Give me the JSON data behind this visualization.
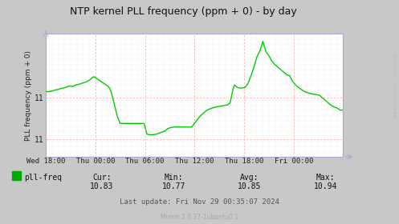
{
  "title": "NTP kernel PLL frequency (ppm + 0) - by day",
  "ylabel": "PLL frequency (ppm + 0)",
  "x_labels": [
    "Wed 18:00",
    "Thu 00:00",
    "Thu 06:00",
    "Thu 12:00",
    "Thu 18:00",
    "Fri 00:00"
  ],
  "ylim": [
    10.735,
    10.975
  ],
  "y_ticks": [
    10.77,
    10.85
  ],
  "line_color": "#00cc00",
  "fig_bg": "#c8c8c8",
  "plot_bg": "#ffffff",
  "legend_label": "pll-freq",
  "legend_color": "#00aa00",
  "stats_cur": "10.83",
  "stats_min": "10.77",
  "stats_avg": "10.85",
  "stats_max": "10.94",
  "last_update": "Last update: Fri Nov 29 00:35:07 2024",
  "munin_version": "Munin 2.0.37-1ubuntu0.1",
  "rrdtool_label": "RRDTOOL / TOBI OETIKER",
  "data_x": [
    0.0,
    0.01,
    0.02,
    0.03,
    0.04,
    0.05,
    0.06,
    0.07,
    0.08,
    0.09,
    0.1,
    0.11,
    0.12,
    0.13,
    0.14,
    0.15,
    0.155,
    0.16,
    0.165,
    0.17,
    0.175,
    0.18,
    0.185,
    0.19,
    0.195,
    0.2,
    0.205,
    0.21,
    0.215,
    0.22,
    0.225,
    0.23,
    0.24,
    0.25,
    0.26,
    0.27,
    0.28,
    0.29,
    0.3,
    0.31,
    0.32,
    0.33,
    0.34,
    0.35,
    0.36,
    0.37,
    0.38,
    0.39,
    0.4,
    0.41,
    0.42,
    0.43,
    0.44,
    0.45,
    0.46,
    0.47,
    0.48,
    0.49,
    0.5,
    0.51,
    0.52,
    0.53,
    0.54,
    0.55,
    0.56,
    0.57,
    0.58,
    0.59,
    0.6,
    0.61,
    0.62,
    0.625,
    0.63,
    0.635,
    0.64,
    0.645,
    0.65,
    0.655,
    0.66,
    0.67,
    0.68,
    0.69,
    0.7,
    0.71,
    0.72,
    0.73,
    0.74,
    0.75,
    0.76,
    0.77,
    0.78,
    0.79,
    0.8,
    0.81,
    0.82,
    0.83,
    0.84,
    0.85,
    0.86,
    0.87,
    0.88,
    0.89,
    0.9,
    0.91,
    0.92,
    0.93,
    0.94,
    0.95,
    0.96,
    0.97,
    0.98,
    0.99,
    1.0
  ],
  "data_y": [
    10.862,
    10.862,
    10.863,
    10.865,
    10.866,
    10.868,
    10.869,
    10.871,
    10.873,
    10.872,
    10.875,
    10.876,
    10.878,
    10.88,
    10.882,
    10.886,
    10.889,
    10.891,
    10.89,
    10.888,
    10.886,
    10.884,
    10.882,
    10.88,
    10.878,
    10.876,
    10.874,
    10.872,
    10.868,
    10.86,
    10.85,
    10.838,
    10.814,
    10.8,
    10.8,
    10.8,
    10.8,
    10.8,
    10.8,
    10.8,
    10.8,
    10.8,
    10.779,
    10.778,
    10.778,
    10.779,
    10.781,
    10.783,
    10.785,
    10.79,
    10.792,
    10.793,
    10.793,
    10.793,
    10.793,
    10.793,
    10.793,
    10.793,
    10.8,
    10.808,
    10.815,
    10.82,
    10.825,
    10.828,
    10.83,
    10.832,
    10.833,
    10.834,
    10.835,
    10.836,
    10.84,
    10.855,
    10.868,
    10.875,
    10.872,
    10.87,
    10.869,
    10.869,
    10.869,
    10.87,
    10.878,
    10.893,
    10.91,
    10.93,
    10.941,
    10.96,
    10.94,
    10.932,
    10.922,
    10.915,
    10.91,
    10.905,
    10.9,
    10.895,
    10.893,
    10.882,
    10.875,
    10.87,
    10.866,
    10.862,
    10.86,
    10.858,
    10.857,
    10.856,
    10.855,
    10.85,
    10.845,
    10.84,
    10.835,
    10.832,
    10.83,
    10.826,
    10.826
  ]
}
